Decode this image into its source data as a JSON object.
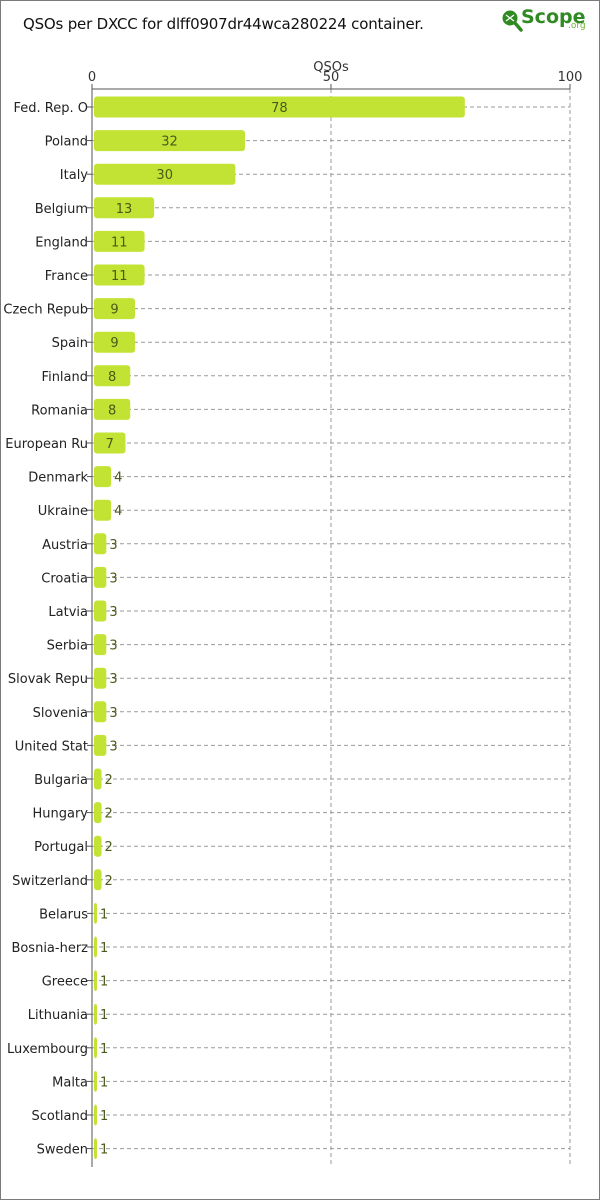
{
  "chart_data": {
    "type": "bar",
    "orientation": "horizontal",
    "title": "QSOs per DXCC for dlff0907dr44wca280224 container.",
    "xlabel": "QSOs",
    "ylabel": "",
    "xlim": [
      0,
      100
    ],
    "xticks": [
      0,
      50,
      100
    ],
    "grid": true,
    "bar_color": "#c2e334",
    "categories": [
      "Fed. Rep. O",
      "Poland",
      "Italy",
      "Belgium",
      "England",
      "France",
      "Czech Repub",
      "Spain",
      "Finland",
      "Romania",
      "European Ru",
      "Denmark",
      "Ukraine",
      "Austria",
      "Croatia",
      "Latvia",
      "Serbia",
      "Slovak Repu",
      "Slovenia",
      "United Stat",
      "Bulgaria",
      "Hungary",
      "Portugal",
      "Switzerland",
      "Belarus",
      "Bosnia-herz",
      "Greece",
      "Lithuania",
      "Luxembourg",
      "Malta",
      "Scotland",
      "Sweden"
    ],
    "values": [
      78,
      32,
      30,
      13,
      11,
      11,
      9,
      9,
      8,
      8,
      7,
      4,
      4,
      3,
      3,
      3,
      3,
      3,
      3,
      3,
      2,
      2,
      2,
      2,
      1,
      1,
      1,
      1,
      1,
      1,
      1,
      1
    ]
  },
  "logo": {
    "text": "Scope",
    "suffix": ".org",
    "icon": "magnifier-icon"
  }
}
